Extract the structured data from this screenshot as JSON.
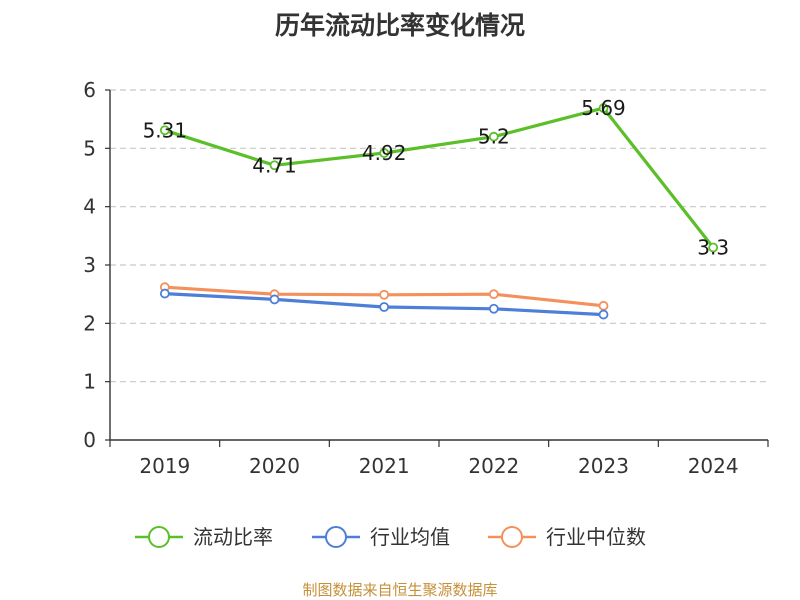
{
  "chart_data": {
    "type": "line",
    "title": "历年流动比率变化情况",
    "categories": [
      "2019",
      "2020",
      "2021",
      "2022",
      "2023",
      "2024"
    ],
    "ylim": [
      0,
      6
    ],
    "yticks": [
      "0",
      "1",
      "2",
      "3",
      "4",
      "5",
      "6"
    ],
    "grid": true,
    "legend_position": "bottom",
    "series": [
      {
        "name": "流动比率",
        "color": "#5bbf2a",
        "values": [
          5.31,
          4.71,
          4.92,
          5.2,
          5.69,
          3.3
        ],
        "labels": [
          "5.31",
          "4.71",
          "4.92",
          "5.2",
          "5.69",
          "3.3"
        ]
      },
      {
        "name": "行业均值",
        "color": "#4d7fd8",
        "values": [
          2.51,
          2.41,
          2.28,
          2.25,
          2.15,
          null
        ]
      },
      {
        "name": "行业中位数",
        "color": "#f4905c",
        "values": [
          2.62,
          2.5,
          2.49,
          2.5,
          2.3,
          null
        ]
      }
    ]
  },
  "footer": {
    "source": "制图数据来自恒生聚源数据库"
  }
}
